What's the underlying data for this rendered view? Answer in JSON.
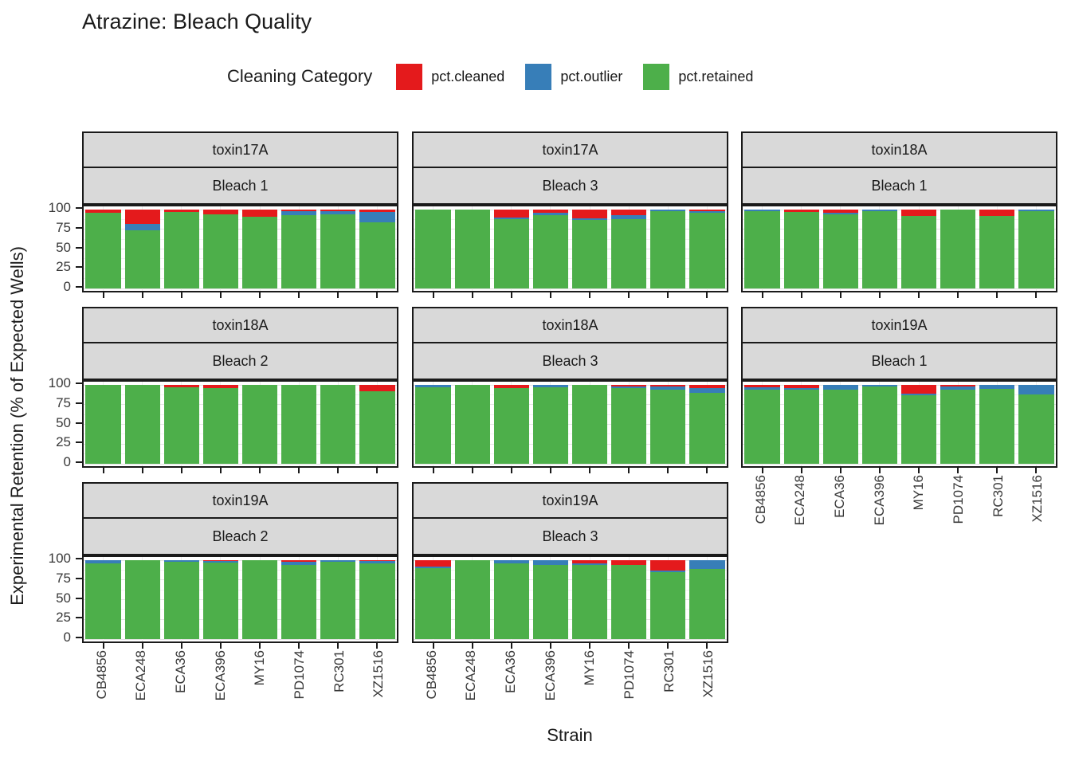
{
  "title": "Atrazine: Bleach Quality",
  "legend": {
    "title": "Cleaning Category",
    "items": [
      {
        "label": "pct.cleaned",
        "color": "#E41A1C"
      },
      {
        "label": "pct.outlier",
        "color": "#377EB8"
      },
      {
        "label": "pct.retained",
        "color": "#4DAF4A"
      }
    ]
  },
  "axes": {
    "y_title": "Experimental Retention (% of Expected Wells)",
    "x_title": "Strain",
    "y_ticks": [
      "100",
      "75",
      "50",
      "25",
      "0"
    ]
  },
  "colors": {
    "cleaned": "#E41A1C",
    "outlier": "#377EB8",
    "retained": "#4DAF4A",
    "strip_background": "#D9D9D9"
  },
  "chart_data": {
    "type": "bar",
    "stacked": true,
    "categories": [
      "CB4856",
      "ECA248",
      "ECA36",
      "ECA396",
      "MY16",
      "PD1074",
      "RC301",
      "XZ1516"
    ],
    "ylim": [
      0,
      100
    ],
    "y_major_gridlines": [
      0,
      25,
      50,
      75,
      100
    ],
    "y_minor_gridlines": [
      12.5,
      37.5,
      62.5,
      87.5
    ],
    "series_order": [
      "pct.cleaned",
      "pct.outlier",
      "pct.retained"
    ],
    "legend_position": "top",
    "panels": [
      {
        "toxin": "toxin17A",
        "bleach": "Bleach 1",
        "grid": {
          "row": 0,
          "col": 0
        },
        "show_x_labels": false,
        "pct_cleaned": [
          4,
          18,
          3,
          6,
          9,
          2,
          2,
          3
        ],
        "pct_outlier": [
          0,
          8,
          0,
          0,
          0,
          5,
          4,
          13
        ],
        "pct_retained": [
          96,
          74,
          97,
          94,
          91,
          93,
          94,
          84
        ]
      },
      {
        "toxin": "toxin17A",
        "bleach": "Bleach 3",
        "grid": {
          "row": 0,
          "col": 1
        },
        "show_x_labels": false,
        "pct_cleaned": [
          0,
          0,
          10,
          4,
          11,
          7,
          0,
          2
        ],
        "pct_outlier": [
          0,
          0,
          2,
          3,
          2,
          5,
          2,
          2
        ],
        "pct_retained": [
          100,
          100,
          88,
          93,
          87,
          88,
          98,
          96
        ]
      },
      {
        "toxin": "toxin18A",
        "bleach": "Bleach 1",
        "grid": {
          "row": 0,
          "col": 2
        },
        "show_x_labels": false,
        "pct_cleaned": [
          0,
          3,
          4,
          0,
          8,
          0,
          8,
          0
        ],
        "pct_outlier": [
          2,
          0,
          2,
          2,
          0,
          0,
          0,
          2
        ],
        "pct_retained": [
          98,
          97,
          94,
          98,
          92,
          100,
          92,
          98
        ]
      },
      {
        "toxin": "toxin18A",
        "bleach": "Bleach 2",
        "grid": {
          "row": 1,
          "col": 0
        },
        "show_x_labels": false,
        "pct_cleaned": [
          0,
          0,
          3,
          4,
          0,
          0,
          0,
          8
        ],
        "pct_outlier": [
          0,
          0,
          0,
          0,
          0,
          0,
          0,
          0
        ],
        "pct_retained": [
          100,
          100,
          97,
          96,
          100,
          100,
          100,
          92
        ]
      },
      {
        "toxin": "toxin18A",
        "bleach": "Bleach 3",
        "grid": {
          "row": 1,
          "col": 1
        },
        "show_x_labels": false,
        "pct_cleaned": [
          0,
          0,
          4,
          0,
          0,
          2,
          2,
          4
        ],
        "pct_outlier": [
          3,
          0,
          0,
          3,
          0,
          2,
          4,
          6
        ],
        "pct_retained": [
          97,
          100,
          96,
          97,
          100,
          96,
          94,
          90
        ]
      },
      {
        "toxin": "toxin19A",
        "bleach": "Bleach 1",
        "grid": {
          "row": 1,
          "col": 2
        },
        "show_x_labels": true,
        "pct_cleaned": [
          3,
          4,
          0,
          0,
          11,
          2,
          0,
          0
        ],
        "pct_outlier": [
          3,
          2,
          6,
          2,
          2,
          4,
          5,
          12
        ],
        "pct_retained": [
          94,
          94,
          94,
          98,
          87,
          94,
          95,
          88
        ]
      },
      {
        "toxin": "toxin19A",
        "bleach": "Bleach 2",
        "grid": {
          "row": 2,
          "col": 0
        },
        "show_x_labels": true,
        "pct_cleaned": [
          0,
          0,
          0,
          1,
          0,
          2,
          0,
          1
        ],
        "pct_outlier": [
          4,
          0,
          2,
          2,
          0,
          4,
          2,
          3
        ],
        "pct_retained": [
          96,
          100,
          98,
          97,
          100,
          94,
          98,
          96
        ]
      },
      {
        "toxin": "toxin19A",
        "bleach": "Bleach 3",
        "grid": {
          "row": 2,
          "col": 1
        },
        "show_x_labels": true,
        "pct_cleaned": [
          8,
          0,
          0,
          0,
          4,
          6,
          13,
          0
        ],
        "pct_outlier": [
          2,
          0,
          4,
          6,
          2,
          0,
          2,
          11
        ],
        "pct_retained": [
          90,
          100,
          96,
          94,
          94,
          94,
          85,
          89
        ]
      }
    ]
  }
}
